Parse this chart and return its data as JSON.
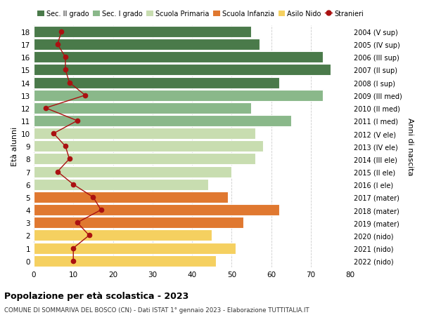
{
  "ages": [
    18,
    17,
    16,
    15,
    14,
    13,
    12,
    11,
    10,
    9,
    8,
    7,
    6,
    5,
    4,
    3,
    2,
    1,
    0
  ],
  "years": [
    "2004 (V sup)",
    "2005 (IV sup)",
    "2006 (III sup)",
    "2007 (II sup)",
    "2008 (I sup)",
    "2009 (III med)",
    "2010 (II med)",
    "2011 (I med)",
    "2012 (V ele)",
    "2013 (IV ele)",
    "2014 (III ele)",
    "2015 (II ele)",
    "2016 (I ele)",
    "2017 (mater)",
    "2018 (mater)",
    "2019 (mater)",
    "2020 (nido)",
    "2021 (nido)",
    "2022 (nido)"
  ],
  "bar_values": [
    55,
    57,
    73,
    75,
    62,
    73,
    55,
    65,
    56,
    58,
    56,
    50,
    44,
    49,
    62,
    53,
    45,
    51,
    46
  ],
  "bar_colors": [
    "#4a7a4a",
    "#4a7a4a",
    "#4a7a4a",
    "#4a7a4a",
    "#4a7a4a",
    "#8ab88a",
    "#8ab88a",
    "#8ab88a",
    "#c8ddb0",
    "#c8ddb0",
    "#c8ddb0",
    "#c8ddb0",
    "#c8ddb0",
    "#e07830",
    "#e07830",
    "#e07830",
    "#f5d060",
    "#f5d060",
    "#f5d060"
  ],
  "stranieri_values": [
    7,
    6,
    8,
    8,
    9,
    13,
    3,
    11,
    5,
    8,
    9,
    6,
    10,
    15,
    17,
    11,
    14,
    10,
    10
  ],
  "stranieri_color": "#aa1111",
  "title": "Popolazione per età scolastica - 2023",
  "subtitle": "COMUNE DI SOMMARIVA DEL BOSCO (CN) - Dati ISTAT 1° gennaio 2023 - Elaborazione TUTTITALIA.IT",
  "ylabel_left": "Età alunni",
  "ylabel_right": "Anni di nascita",
  "xlim": [
    0,
    80
  ],
  "xticks": [
    0,
    10,
    20,
    30,
    40,
    50,
    60,
    70,
    80
  ],
  "legend_items": [
    {
      "label": "Sec. II grado",
      "color": "#4a7a4a"
    },
    {
      "label": "Sec. I grado",
      "color": "#8ab88a"
    },
    {
      "label": "Scuola Primaria",
      "color": "#c8ddb0"
    },
    {
      "label": "Scuola Infanzia",
      "color": "#e07830"
    },
    {
      "label": "Asilo Nido",
      "color": "#f5d060"
    },
    {
      "label": "Stranieri",
      "color": "#aa1111"
    }
  ],
  "background_color": "#ffffff",
  "grid_color": "#cccccc"
}
